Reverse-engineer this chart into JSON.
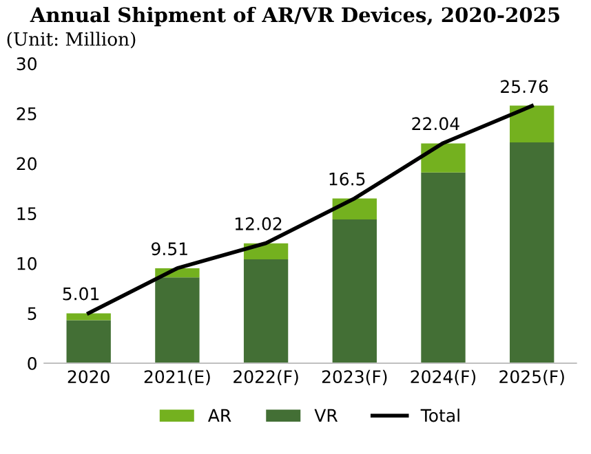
{
  "chart_data": {
    "type": "bar",
    "title": "Annual Shipment of AR/VR Devices, 2020-2025",
    "ylabel": "(Unit: Million)",
    "categories": [
      "2020",
      "2021(E)",
      "2022(F)",
      "2023(F)",
      "2024(F)",
      "2025(F)"
    ],
    "stacked": true,
    "series": [
      {
        "name": "VR",
        "color": "#436f35",
        "values": [
          4.3,
          8.6,
          10.4,
          14.4,
          19.1,
          22.1
        ]
      },
      {
        "name": "AR",
        "color": "#74b11f",
        "values": [
          0.7,
          0.9,
          1.6,
          2.1,
          2.9,
          3.7
        ]
      },
      {
        "name": "Total",
        "type": "line",
        "color": "#000000",
        "values": [
          5.01,
          9.51,
          12.02,
          16.5,
          22.04,
          25.76
        ],
        "value_labels": [
          "5.01",
          "9.51",
          "12.02",
          "16.5",
          "22.04",
          "25.76"
        ]
      }
    ],
    "ylim": [
      0,
      30
    ],
    "yticks": [
      0,
      5,
      10,
      15,
      20,
      25,
      30
    ],
    "grid": false,
    "legend": "bottom",
    "marker": "none"
  }
}
